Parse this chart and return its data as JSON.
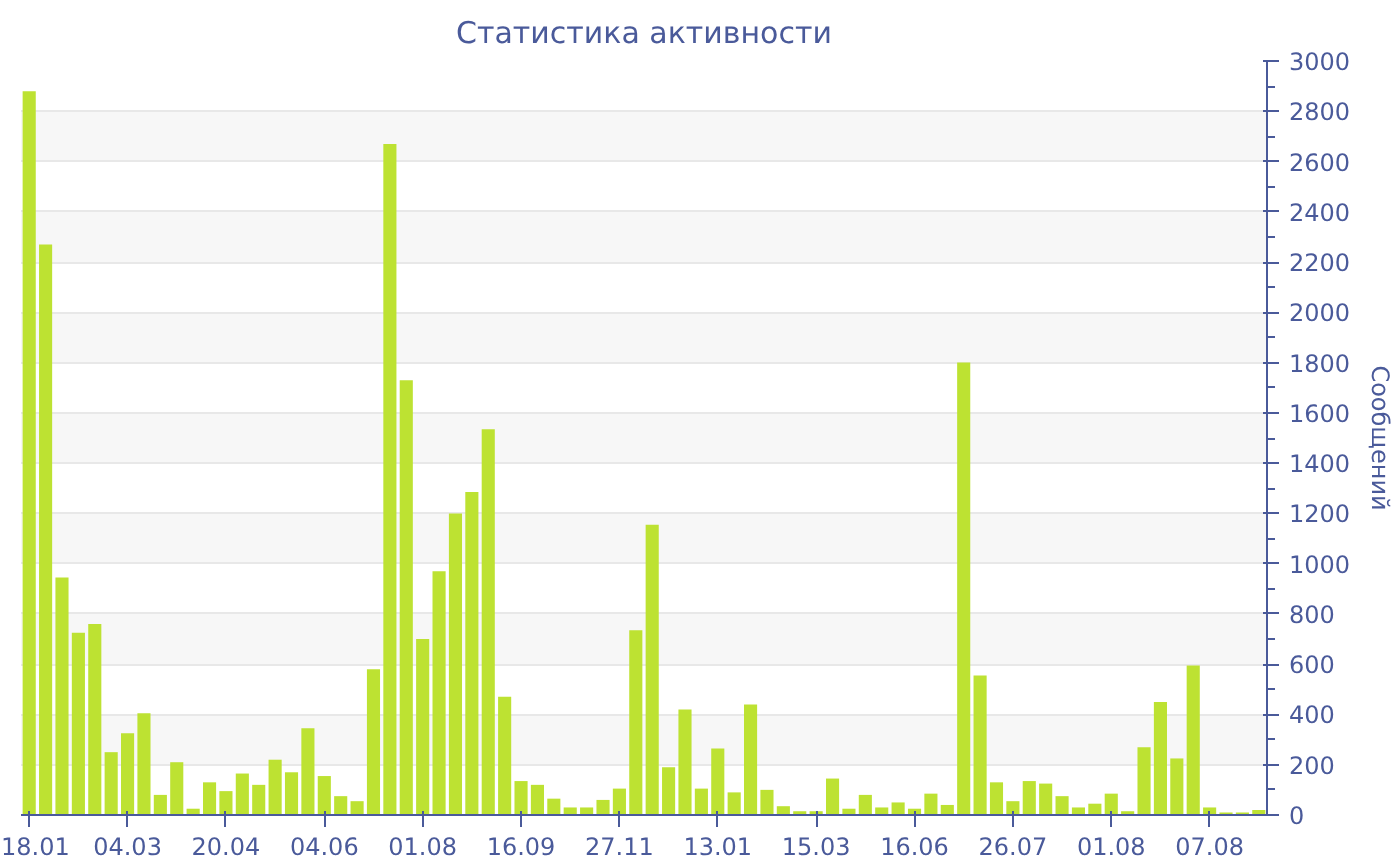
{
  "chart_data": {
    "type": "bar",
    "title": "Статистика активности",
    "ylabel": "Сообщений",
    "color": "#bde232",
    "categories": [
      "18.01",
      null,
      null,
      null,
      null,
      null,
      "04.03",
      null,
      null,
      null,
      null,
      null,
      "20.04",
      null,
      null,
      null,
      null,
      null,
      "04.06",
      null,
      null,
      null,
      null,
      null,
      "01.08",
      null,
      null,
      null,
      null,
      null,
      "16.09",
      null,
      null,
      null,
      null,
      null,
      "27.11",
      null,
      null,
      null,
      null,
      null,
      "13.01",
      null,
      null,
      null,
      null,
      null,
      "15.03",
      null,
      null,
      null,
      null,
      null,
      "16.06",
      null,
      null,
      null,
      null,
      null,
      "26.07",
      null,
      null,
      null,
      null,
      null,
      "01.08",
      null,
      null,
      null,
      null,
      null,
      "07.08",
      null,
      null,
      null
    ],
    "values": [
      2880,
      2270,
      945,
      725,
      760,
      250,
      325,
      405,
      80,
      210,
      25,
      130,
      95,
      165,
      120,
      220,
      170,
      345,
      155,
      75,
      55,
      580,
      2670,
      1730,
      700,
      970,
      1200,
      1285,
      1535,
      470,
      135,
      120,
      65,
      30,
      30,
      60,
      105,
      735,
      1155,
      190,
      420,
      105,
      265,
      90,
      440,
      100,
      35,
      15,
      15,
      145,
      25,
      80,
      30,
      50,
      25,
      85,
      40,
      1800,
      555,
      130,
      55,
      135,
      125,
      75,
      30,
      45,
      85,
      15,
      270,
      450,
      225,
      595,
      30,
      10,
      10,
      20
    ],
    "ylim": [
      0,
      3000
    ],
    "yticks": [
      0,
      200,
      400,
      600,
      800,
      1000,
      1200,
      1400,
      1600,
      1800,
      2000,
      2200,
      2400,
      2600,
      2800,
      3000
    ],
    "grid": "y"
  }
}
